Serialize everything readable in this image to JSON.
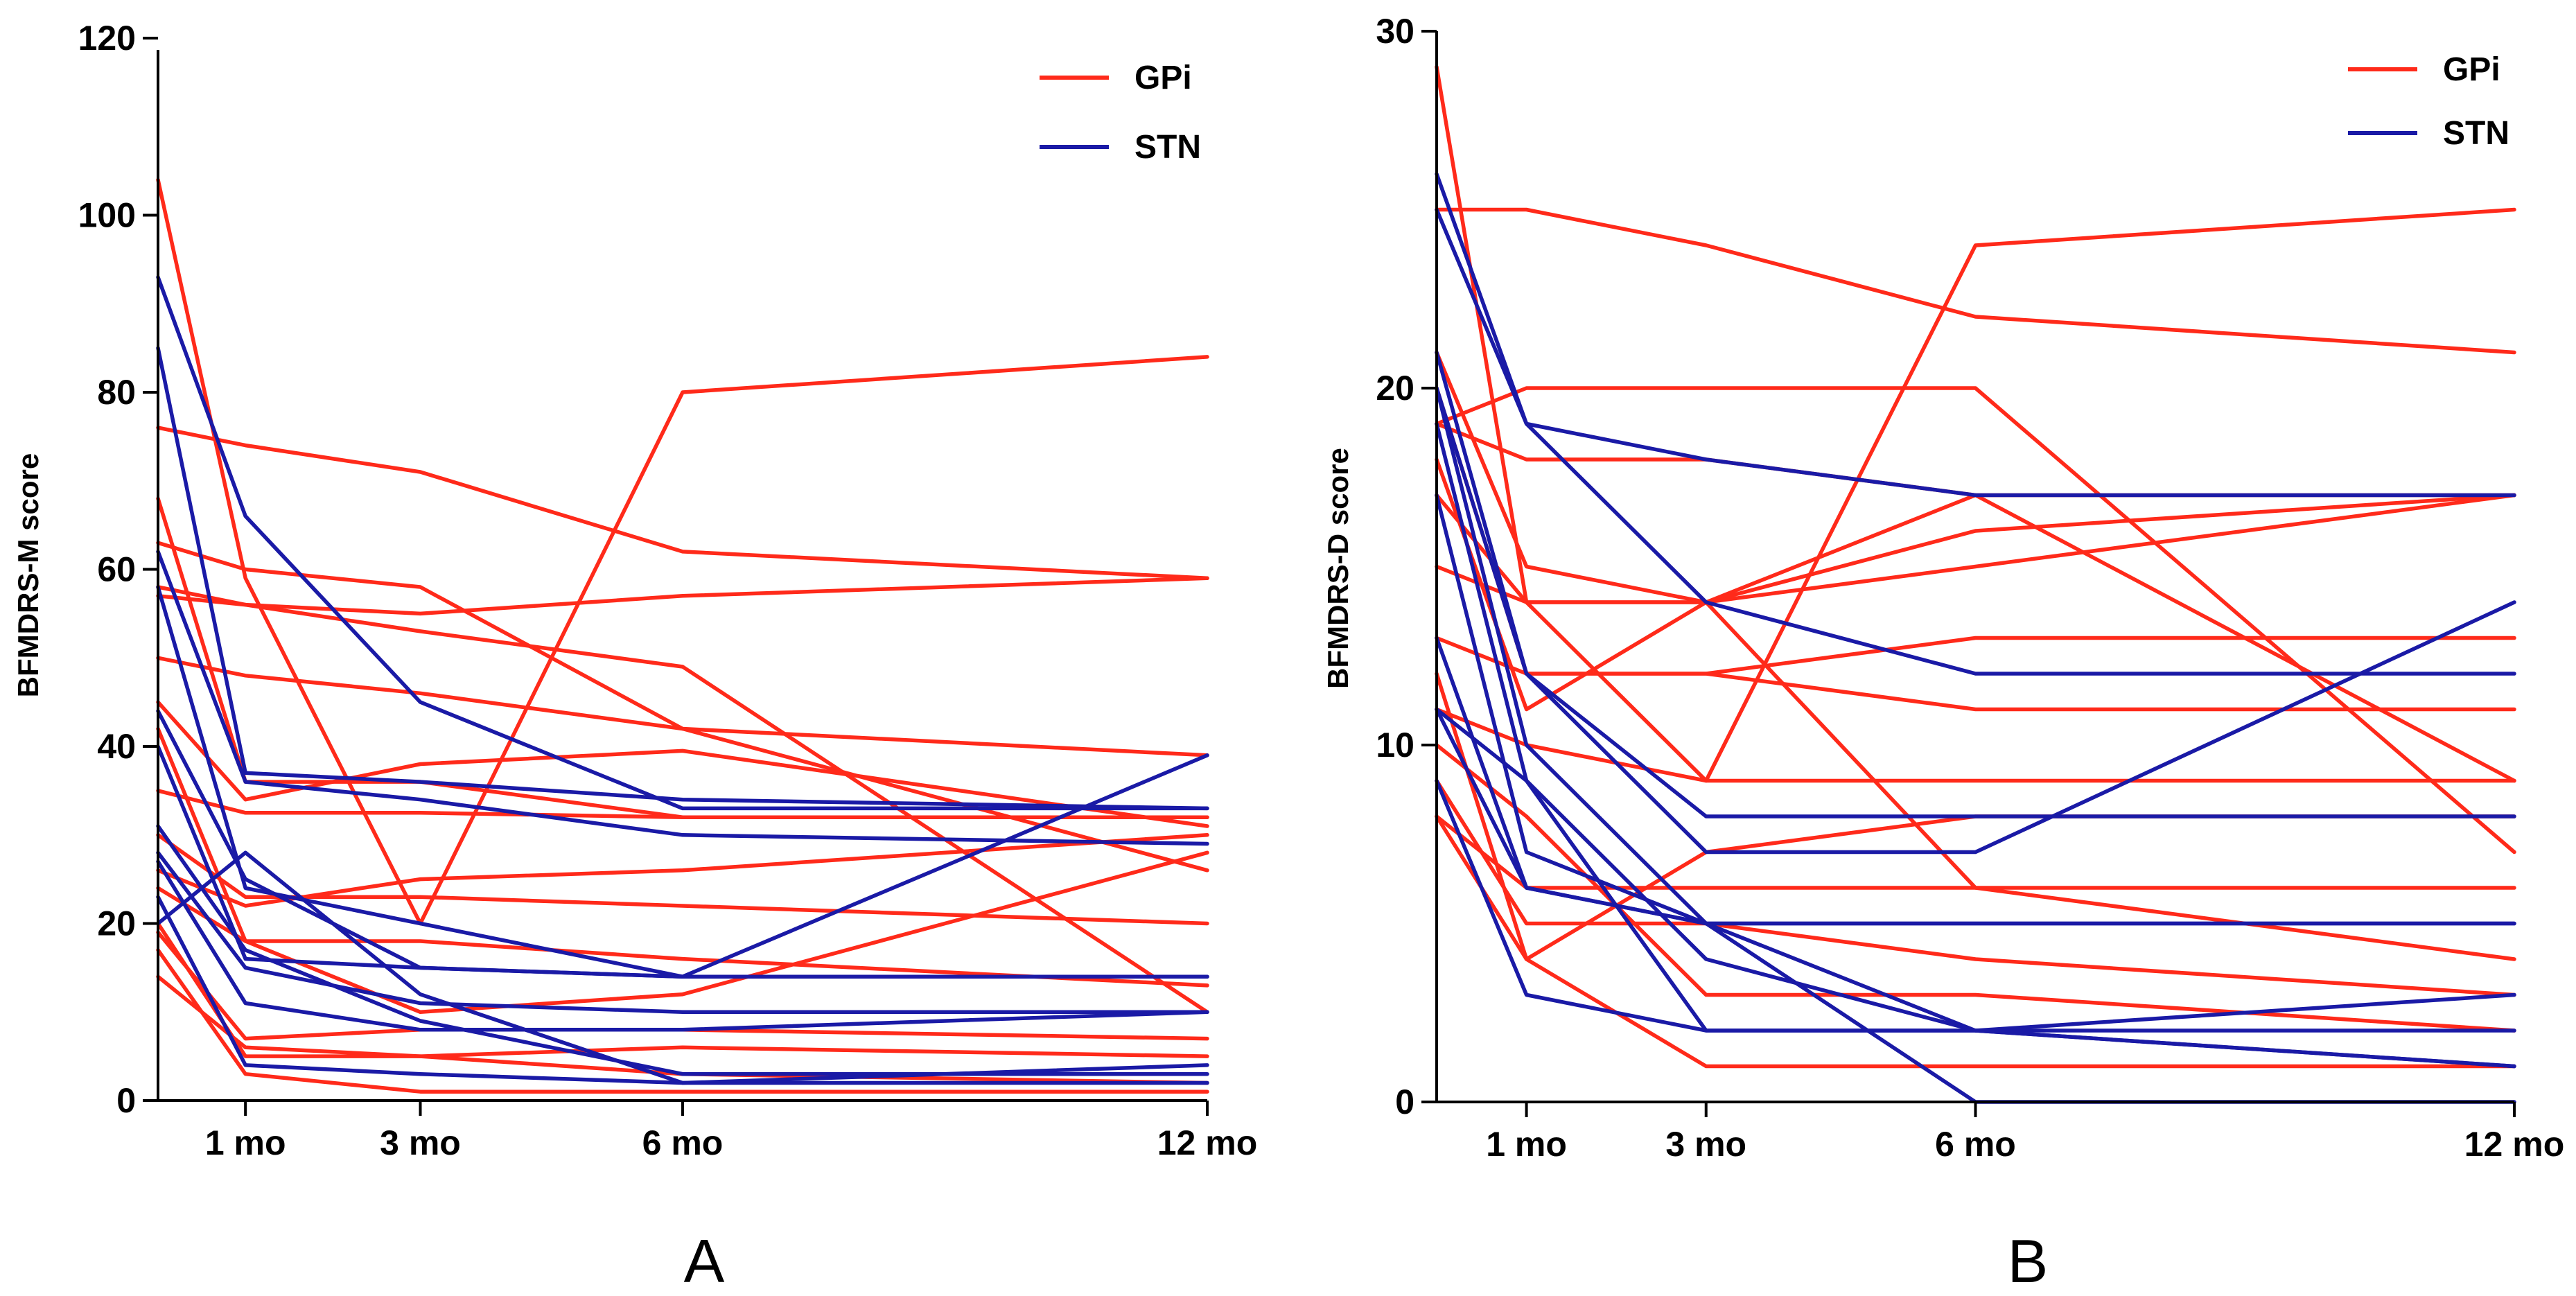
{
  "chart_data": [
    {
      "type": "line",
      "panel_label": "A",
      "ylabel": "BFMDRS-M score",
      "xlabel": "",
      "x_ticks": [
        {
          "x": 1,
          "label": "1 mo"
        },
        {
          "x": 3,
          "label": "3 mo"
        },
        {
          "x": 6,
          "label": "6 mo"
        },
        {
          "x": 12,
          "label": "12 mo"
        }
      ],
      "xlim": [
        0,
        12
      ],
      "ylim": [
        0,
        120
      ],
      "y_ticks": [
        0,
        20,
        40,
        60,
        80,
        100,
        120
      ],
      "legend": [
        {
          "name": "GPi",
          "color": "#ff2a1a"
        },
        {
          "name": "STN",
          "color": "#1a1aa6"
        }
      ],
      "legend_position": "top-right",
      "series": [
        {
          "group": "STN",
          "x": [
            0,
            1,
            3,
            6,
            12
          ],
          "y": [
            93,
            66,
            45,
            33,
            33
          ]
        },
        {
          "group": "STN",
          "x": [
            0,
            1,
            3,
            6,
            12
          ],
          "y": [
            85,
            37,
            36,
            34,
            33
          ]
        },
        {
          "group": "STN",
          "x": [
            0,
            1,
            3,
            6,
            12
          ],
          "y": [
            62,
            36,
            34,
            30,
            29
          ]
        },
        {
          "group": "STN",
          "x": [
            0,
            1,
            3,
            6,
            12
          ],
          "y": [
            58,
            24,
            20,
            14,
            39
          ]
        },
        {
          "group": "STN",
          "x": [
            0,
            1,
            3,
            6,
            12
          ],
          "y": [
            44,
            25,
            15,
            14,
            14
          ]
        },
        {
          "group": "STN",
          "x": [
            0,
            1,
            3,
            6,
            12
          ],
          "y": [
            40,
            16,
            15,
            14,
            14
          ]
        },
        {
          "group": "STN",
          "x": [
            0,
            1,
            3,
            6,
            12
          ],
          "y": [
            31,
            17,
            9,
            3,
            3
          ]
        },
        {
          "group": "STN",
          "x": [
            0,
            1,
            3,
            6,
            12
          ],
          "y": [
            28,
            15,
            11,
            10,
            10
          ]
        },
        {
          "group": "STN",
          "x": [
            0,
            1,
            3,
            6,
            12
          ],
          "y": [
            27,
            11,
            8,
            8,
            10
          ]
        },
        {
          "group": "STN",
          "x": [
            0,
            1,
            3,
            6,
            12
          ],
          "y": [
            23,
            4,
            3,
            2,
            2
          ]
        },
        {
          "group": "STN",
          "x": [
            0,
            1,
            3,
            6,
            12
          ],
          "y": [
            20,
            28,
            12,
            2,
            4
          ]
        },
        {
          "group": "GPi",
          "x": [
            0,
            1,
            3,
            6,
            12
          ],
          "y": [
            104,
            59,
            20,
            80,
            84
          ]
        },
        {
          "group": "GPi",
          "x": [
            0,
            1,
            3,
            6,
            12
          ],
          "y": [
            76,
            74,
            71,
            62,
            59
          ]
        },
        {
          "group": "GPi",
          "x": [
            0,
            1,
            3,
            6,
            12
          ],
          "y": [
            68,
            36,
            36,
            32,
            32
          ]
        },
        {
          "group": "GPi",
          "x": [
            0,
            1,
            3,
            6,
            12
          ],
          "y": [
            63,
            60,
            58,
            42,
            26
          ]
        },
        {
          "group": "GPi",
          "x": [
            0,
            1,
            3,
            6,
            12
          ],
          "y": [
            58,
            56,
            55,
            57,
            59
          ]
        },
        {
          "group": "GPi",
          "x": [
            0,
            1,
            3,
            6,
            12
          ],
          "y": [
            57,
            56,
            53,
            49,
            10
          ]
        },
        {
          "group": "GPi",
          "x": [
            0,
            1,
            3,
            6,
            12
          ],
          "y": [
            50,
            48,
            46,
            42,
            39
          ]
        },
        {
          "group": "GPi",
          "x": [
            0,
            1,
            3,
            6,
            12
          ],
          "y": [
            45,
            34,
            38,
            39.5,
            31
          ]
        },
        {
          "group": "GPi",
          "x": [
            0,
            1,
            3,
            6,
            12
          ],
          "y": [
            42,
            18,
            10,
            12,
            28
          ]
        },
        {
          "group": "GPi",
          "x": [
            0,
            1,
            3,
            6,
            12
          ],
          "y": [
            35,
            32.5,
            32.5,
            32,
            32
          ]
        },
        {
          "group": "GPi",
          "x": [
            0,
            1,
            3,
            6,
            12
          ],
          "y": [
            30,
            23,
            23,
            22,
            20
          ]
        },
        {
          "group": "GPi",
          "x": [
            0,
            1,
            3,
            6,
            12
          ],
          "y": [
            26,
            22,
            25,
            26,
            30
          ]
        },
        {
          "group": "GPi",
          "x": [
            0,
            1,
            3,
            6,
            12
          ],
          "y": [
            24,
            18,
            18,
            16,
            13
          ]
        },
        {
          "group": "GPi",
          "x": [
            0,
            1,
            3,
            6,
            12
          ],
          "y": [
            20,
            5,
            5,
            6,
            5
          ]
        },
        {
          "group": "GPi",
          "x": [
            0,
            1,
            3,
            6,
            12
          ],
          "y": [
            19,
            7,
            8,
            8,
            7
          ]
        },
        {
          "group": "GPi",
          "x": [
            0,
            1,
            3,
            6,
            12
          ],
          "y": [
            17,
            3,
            1,
            1,
            1
          ]
        },
        {
          "group": "GPi",
          "x": [
            0,
            1,
            3,
            6,
            12
          ],
          "y": [
            14,
            6,
            5,
            3,
            2
          ]
        }
      ]
    },
    {
      "type": "line",
      "panel_label": "B",
      "ylabel": "BFMDRS-D score",
      "xlabel": "",
      "x_ticks": [
        {
          "x": 1,
          "label": "1 mo"
        },
        {
          "x": 3,
          "label": "3 mo"
        },
        {
          "x": 6,
          "label": "6 mo"
        },
        {
          "x": 12,
          "label": "12 mo"
        }
      ],
      "xlim": [
        0,
        12
      ],
      "ylim": [
        0,
        30
      ],
      "y_ticks": [
        0,
        10,
        20,
        30
      ],
      "legend": [
        {
          "name": "GPi",
          "color": "#ff2a1a"
        },
        {
          "name": "STN",
          "color": "#1a1aa6"
        }
      ],
      "legend_position": "top-right",
      "series": [
        {
          "group": "STN",
          "x": [
            0,
            1,
            3,
            6,
            12
          ],
          "y": [
            26,
            19,
            18,
            17,
            17
          ]
        },
        {
          "group": "STN",
          "x": [
            0,
            1,
            3,
            6,
            12
          ],
          "y": [
            25,
            19,
            14,
            12,
            12
          ]
        },
        {
          "group": "STN",
          "x": [
            0,
            1,
            3,
            6,
            12
          ],
          "y": [
            21,
            12,
            7,
            7,
            14
          ]
        },
        {
          "group": "STN",
          "x": [
            0,
            1,
            3,
            6,
            12
          ],
          "y": [
            20,
            12,
            8,
            8,
            8
          ]
        },
        {
          "group": "STN",
          "x": [
            0,
            1,
            3,
            6,
            12
          ],
          "y": [
            20,
            10,
            5,
            5,
            5
          ]
        },
        {
          "group": "STN",
          "x": [
            0,
            1,
            3,
            6,
            12
          ],
          "y": [
            19,
            9,
            4,
            2,
            3
          ]
        },
        {
          "group": "STN",
          "x": [
            0,
            1,
            3,
            6,
            12
          ],
          "y": [
            17,
            7,
            5,
            5,
            5
          ]
        },
        {
          "group": "STN",
          "x": [
            0,
            1,
            3,
            6,
            12
          ],
          "y": [
            13,
            6,
            5,
            2,
            1
          ]
        },
        {
          "group": "STN",
          "x": [
            0,
            1,
            3,
            6,
            12
          ],
          "y": [
            11,
            9,
            2,
            2,
            2
          ]
        },
        {
          "group": "STN",
          "x": [
            0,
            1,
            3,
            6,
            12
          ],
          "y": [
            9,
            3,
            2,
            2,
            1
          ]
        },
        {
          "group": "STN",
          "x": [
            0,
            1,
            3,
            6,
            12
          ],
          "y": [
            11,
            6,
            5,
            0,
            0
          ]
        },
        {
          "group": "GPi",
          "x": [
            0,
            1,
            3,
            6,
            12
          ],
          "y": [
            29,
            14,
            9,
            24,
            25
          ]
        },
        {
          "group": "GPi",
          "x": [
            0,
            1,
            3,
            6,
            12
          ],
          "y": [
            25,
            25,
            24,
            22,
            21
          ]
        },
        {
          "group": "GPi",
          "x": [
            0,
            1,
            3,
            6,
            12
          ],
          "y": [
            21,
            15,
            14,
            6,
            4
          ]
        },
        {
          "group": "GPi",
          "x": [
            0,
            1,
            3,
            6,
            12
          ],
          "y": [
            20,
            12,
            12,
            11,
            11
          ]
        },
        {
          "group": "GPi",
          "x": [
            0,
            1,
            3,
            6,
            12
          ],
          "y": [
            19,
            20,
            20,
            20,
            7
          ]
        },
        {
          "group": "GPi",
          "x": [
            0,
            1,
            3,
            6,
            12
          ],
          "y": [
            19,
            18,
            18,
            17,
            17
          ]
        },
        {
          "group": "GPi",
          "x": [
            0,
            1,
            3,
            6,
            12
          ],
          "y": [
            18,
            11,
            14,
            16,
            17
          ]
        },
        {
          "group": "GPi",
          "x": [
            0,
            1,
            3,
            6,
            12
          ],
          "y": [
            17,
            14,
            14,
            17,
            9
          ]
        },
        {
          "group": "GPi",
          "x": [
            0,
            1,
            3,
            6,
            12
          ],
          "y": [
            15,
            14,
            14,
            15,
            17
          ]
        },
        {
          "group": "GPi",
          "x": [
            0,
            1,
            3,
            6,
            12
          ],
          "y": [
            13,
            12,
            12,
            13,
            13
          ]
        },
        {
          "group": "GPi",
          "x": [
            0,
            1,
            3,
            6,
            12
          ],
          "y": [
            11,
            10,
            9,
            9,
            9
          ]
        },
        {
          "group": "GPi",
          "x": [
            0,
            1,
            3,
            6,
            12
          ],
          "y": [
            10,
            8,
            3,
            3,
            2
          ]
        },
        {
          "group": "GPi",
          "x": [
            0,
            1,
            3,
            6,
            12
          ],
          "y": [
            8,
            6,
            6,
            6,
            6
          ]
        },
        {
          "group": "GPi",
          "x": [
            0,
            1,
            3,
            6,
            12
          ],
          "y": [
            8,
            4,
            7,
            8,
            8
          ]
        },
        {
          "group": "GPi",
          "x": [
            0,
            1,
            3,
            6,
            12
          ],
          "y": [
            9,
            5,
            5,
            4,
            3
          ]
        },
        {
          "group": "GPi",
          "x": [
            0,
            1,
            3,
            6,
            12
          ],
          "y": [
            12,
            4,
            1,
            1,
            1
          ]
        }
      ]
    }
  ]
}
